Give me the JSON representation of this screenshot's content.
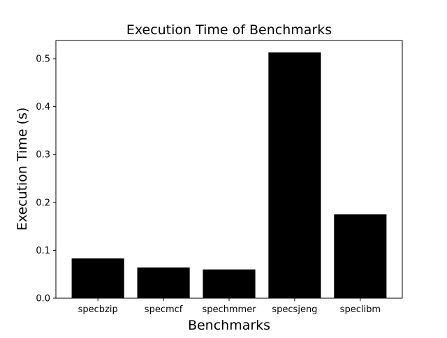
{
  "chart_data": {
    "type": "bar",
    "title": "Execution Time of Benchmarks",
    "xlabel": "Benchmarks",
    "ylabel": "Execution Time (s)",
    "categories": [
      "specbzip",
      "specmcf",
      "spechmmer",
      "specsjeng",
      "speclibm"
    ],
    "values": [
      0.083,
      0.064,
      0.06,
      0.513,
      0.175
    ],
    "ylim": [
      0,
      0.538
    ],
    "yticks": [
      0.0,
      0.1,
      0.2,
      0.3,
      0.4,
      0.5
    ],
    "ytick_labels": [
      "0.0",
      "0.1",
      "0.2",
      "0.3",
      "0.4",
      "0.5"
    ],
    "bar_color": "#000000",
    "grid": false,
    "legend": "none"
  }
}
